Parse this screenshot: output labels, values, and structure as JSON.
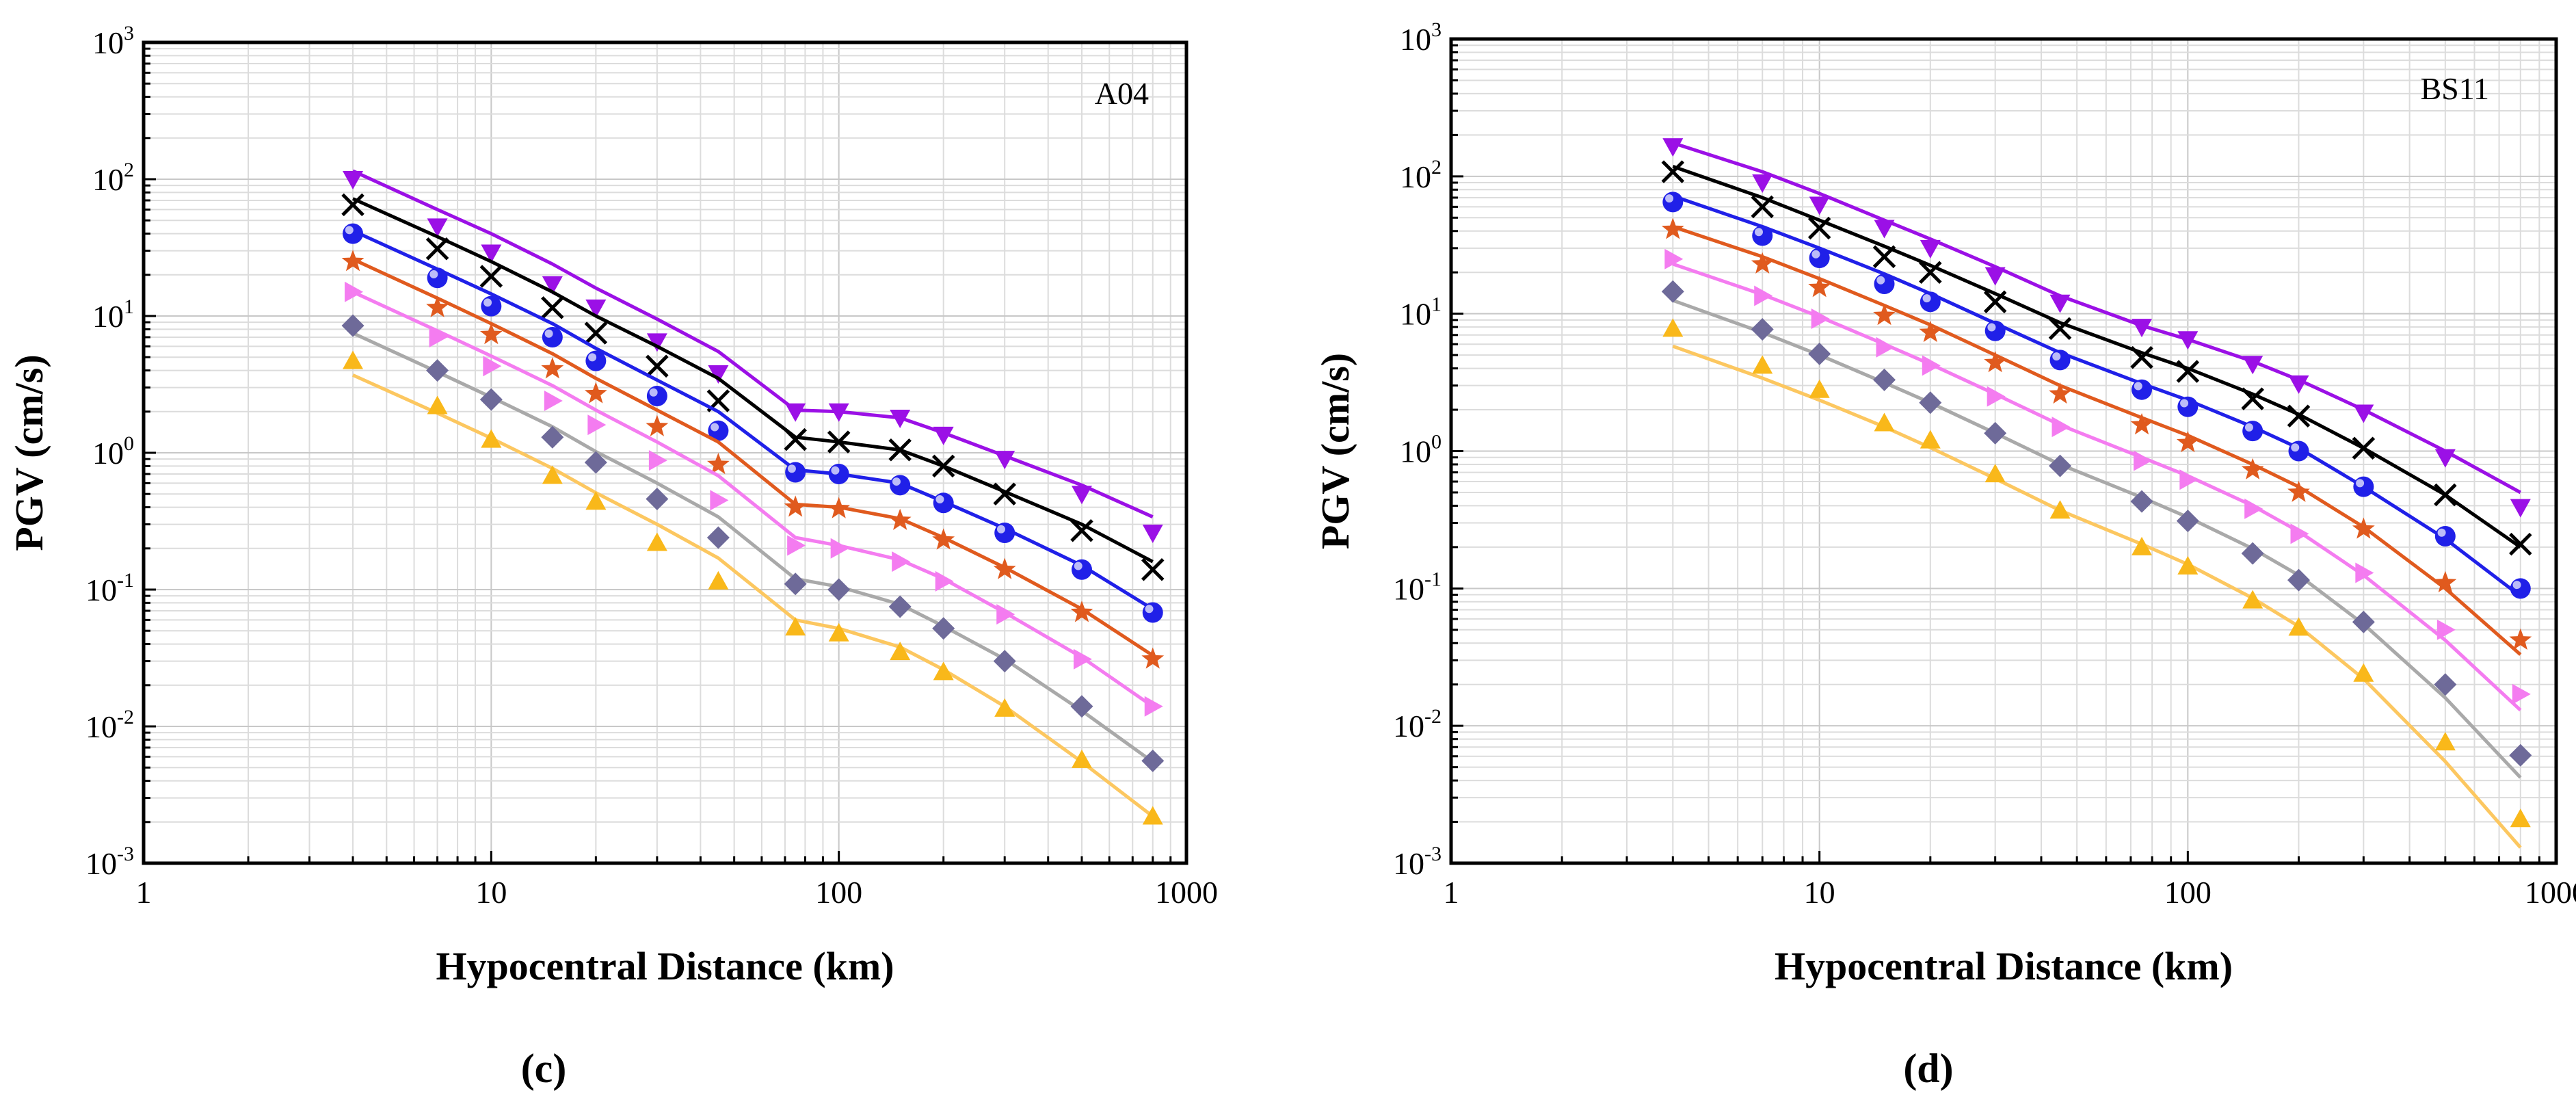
{
  "chart_data": [
    {
      "type": "line",
      "panel_label": "A04",
      "caption": "(c)",
      "xlabel": "Hypocentral Distance (km)",
      "ylabel": "PGV (cm/s)",
      "xscale": "log",
      "yscale": "log",
      "xlim": [
        1,
        1000
      ],
      "ylim": [
        0.001,
        1000
      ],
      "x_ticks": [
        1,
        10,
        100,
        1000
      ],
      "x_tick_labels": [
        "1",
        "10",
        "100",
        "1000"
      ],
      "y_ticks": [
        0.001,
        0.01,
        0.1,
        1,
        10,
        100,
        1000
      ],
      "y_tick_labels": [
        {
          "base": "10",
          "exp": "-3"
        },
        {
          "base": "10",
          "exp": "-2"
        },
        {
          "base": "10",
          "exp": "-1"
        },
        {
          "base": "10",
          "exp": "0"
        },
        {
          "base": "10",
          "exp": "1"
        },
        {
          "base": "10",
          "exp": "2"
        },
        {
          "base": "10",
          "exp": "3"
        }
      ],
      "grid": true,
      "x": [
        4,
        7,
        10,
        15,
        20,
        30,
        45,
        75,
        100,
        150,
        200,
        300,
        500,
        800
      ],
      "series": [
        {
          "color": "#9b10e6",
          "marker": "triangle-down",
          "values": [
            100,
            45,
            29,
            17,
            11.5,
            6.5,
            3.8,
            2.0,
            2.0,
            1.8,
            1.35,
            0.9,
            0.5,
            0.26
          ],
          "fit": [
            115,
            60,
            40,
            24,
            16,
            9.5,
            5.5,
            2.05,
            2.0,
            1.8,
            1.4,
            0.95,
            0.58,
            0.34
          ]
        },
        {
          "color": "#000000",
          "marker": "x",
          "values": [
            65,
            31,
            19.5,
            11.5,
            7.5,
            4.3,
            2.4,
            1.25,
            1.2,
            1.05,
            0.8,
            0.5,
            0.27,
            0.14
          ],
          "fit": [
            72,
            38,
            25,
            15,
            10,
            6.0,
            3.5,
            1.3,
            1.2,
            1.05,
            0.8,
            0.52,
            0.3,
            0.16
          ]
        },
        {
          "color": "#2020e8",
          "marker": "sphere",
          "values": [
            40,
            19,
            11.8,
            7.0,
            4.7,
            2.6,
            1.45,
            0.72,
            0.7,
            0.58,
            0.43,
            0.26,
            0.14,
            0.068
          ],
          "fit": [
            42,
            22,
            14.5,
            8.8,
            5.8,
            3.4,
            2.0,
            0.75,
            0.7,
            0.6,
            0.44,
            0.28,
            0.15,
            0.072
          ]
        },
        {
          "color": "#e05a1e",
          "marker": "star",
          "values": [
            25,
            11.5,
            7.3,
            4.1,
            2.7,
            1.55,
            0.82,
            0.4,
            0.39,
            0.32,
            0.23,
            0.14,
            0.068,
            0.031
          ],
          "fit": [
            26,
            13.5,
            8.8,
            5.3,
            3.5,
            2.05,
            1.2,
            0.42,
            0.4,
            0.33,
            0.24,
            0.145,
            0.072,
            0.033
          ]
        },
        {
          "color": "#f47cf0",
          "marker": "triangle-right",
          "values": [
            15,
            7.0,
            4.3,
            2.4,
            1.6,
            0.88,
            0.45,
            0.21,
            0.2,
            0.16,
            0.115,
            0.066,
            0.031,
            0.014
          ],
          "fit": [
            15,
            7.8,
            5.1,
            3.1,
            2.05,
            1.2,
            0.68,
            0.24,
            0.21,
            0.165,
            0.12,
            0.068,
            0.032,
            0.014
          ]
        },
        {
          "color": "#6e6a99",
          "line_color": "#a9a9a9",
          "marker": "diamond",
          "values": [
            8.5,
            4.0,
            2.45,
            1.3,
            0.85,
            0.46,
            0.24,
            0.11,
            0.1,
            0.075,
            0.052,
            0.03,
            0.014,
            0.0056
          ],
          "fit": [
            7.5,
            3.9,
            2.55,
            1.55,
            1.02,
            0.6,
            0.34,
            0.12,
            0.105,
            0.078,
            0.054,
            0.031,
            0.013,
            0.0055
          ]
        },
        {
          "color": "#f9b81a",
          "line_color": "#fcc760",
          "marker": "triangle-up",
          "values": [
            4.7,
            2.2,
            1.25,
            0.68,
            0.44,
            0.22,
            0.115,
            0.053,
            0.048,
            0.035,
            0.025,
            0.0135,
            0.0057,
            0.0022
          ],
          "fit": [
            3.7,
            1.95,
            1.28,
            0.77,
            0.51,
            0.3,
            0.17,
            0.06,
            0.052,
            0.038,
            0.026,
            0.014,
            0.0055,
            0.0022
          ]
        }
      ]
    },
    {
      "type": "line",
      "panel_label": "BS11",
      "caption": "(d)",
      "xlabel": "Hypocentral Distance (km)",
      "ylabel": "PGV (cm/s)",
      "xscale": "log",
      "yscale": "log",
      "xlim": [
        1,
        1000
      ],
      "ylim": [
        0.001,
        1000
      ],
      "x_ticks": [
        1,
        10,
        100,
        1000
      ],
      "x_tick_labels": [
        "1",
        "10",
        "100",
        "1000"
      ],
      "y_ticks": [
        0.001,
        0.01,
        0.1,
        1,
        10,
        100,
        1000
      ],
      "y_tick_labels": [
        {
          "base": "10",
          "exp": "-3"
        },
        {
          "base": "10",
          "exp": "-2"
        },
        {
          "base": "10",
          "exp": "-1"
        },
        {
          "base": "10",
          "exp": "0"
        },
        {
          "base": "10",
          "exp": "1"
        },
        {
          "base": "10",
          "exp": "2"
        },
        {
          "base": "10",
          "exp": "3"
        }
      ],
      "grid": true,
      "x": [
        4,
        7,
        10,
        15,
        20,
        30,
        45,
        75,
        100,
        150,
        200,
        300,
        500,
        800
      ],
      "series": [
        {
          "color": "#9b10e6",
          "marker": "triangle-down",
          "values": [
            165,
            90,
            62,
            42,
            30,
            19,
            12,
            8.0,
            6.5,
            4.3,
            3.1,
            1.9,
            0.9,
            0.39
          ],
          "fit": [
            175,
            108,
            75,
            48,
            35,
            22,
            13.5,
            8.2,
            6.5,
            4.5,
            3.3,
            2.0,
            1.0,
            0.5
          ]
        },
        {
          "color": "#000000",
          "marker": "x",
          "values": [
            108,
            60,
            42,
            26,
            20,
            12.2,
            7.8,
            4.8,
            3.8,
            2.4,
            1.8,
            1.05,
            0.48,
            0.21
          ],
          "fit": [
            118,
            70,
            48,
            31,
            22.5,
            14,
            8.6,
            5.2,
            4.0,
            2.6,
            1.85,
            1.05,
            0.48,
            0.2
          ]
        },
        {
          "color": "#2020e8",
          "marker": "sphere",
          "values": [
            65,
            37,
            25.5,
            16.5,
            12.2,
            7.5,
            4.6,
            2.8,
            2.1,
            1.4,
            1.0,
            0.55,
            0.24,
            0.1
          ],
          "fit": [
            72,
            43,
            30,
            19.5,
            14,
            8.5,
            5.2,
            3.1,
            2.35,
            1.5,
            1.05,
            0.55,
            0.23,
            0.088
          ]
        },
        {
          "color": "#e05a1e",
          "marker": "star",
          "values": [
            41,
            23,
            15.5,
            9.7,
            7.3,
            4.4,
            2.6,
            1.55,
            1.15,
            0.73,
            0.5,
            0.27,
            0.11,
            0.042
          ],
          "fit": [
            43,
            26,
            18,
            11.5,
            8.3,
            5.0,
            3.0,
            1.75,
            1.3,
            0.8,
            0.55,
            0.28,
            0.1,
            0.033
          ]
        },
        {
          "color": "#f47cf0",
          "marker": "triangle-right",
          "values": [
            25,
            13.5,
            9.2,
            5.7,
            4.2,
            2.5,
            1.5,
            0.85,
            0.62,
            0.38,
            0.25,
            0.13,
            0.05,
            0.017
          ],
          "fit": [
            23,
            13.8,
            9.5,
            6.0,
            4.3,
            2.6,
            1.55,
            0.9,
            0.66,
            0.4,
            0.26,
            0.125,
            0.042,
            0.013
          ]
        },
        {
          "color": "#6e6a99",
          "line_color": "#a9a9a9",
          "marker": "diamond",
          "values": [
            14.5,
            7.7,
            5.1,
            3.3,
            2.25,
            1.35,
            0.78,
            0.43,
            0.31,
            0.18,
            0.115,
            0.057,
            0.02,
            0.0061
          ],
          "fit": [
            12.5,
            7.3,
            5.0,
            3.15,
            2.25,
            1.35,
            0.8,
            0.46,
            0.33,
            0.195,
            0.125,
            0.055,
            0.016,
            0.0042
          ]
        },
        {
          "color": "#f9b81a",
          "line_color": "#fcc760",
          "marker": "triangle-up",
          "values": [
            7.8,
            4.2,
            2.8,
            1.6,
            1.2,
            0.68,
            0.37,
            0.2,
            0.145,
            0.082,
            0.052,
            0.024,
            0.0076,
            0.0021
          ],
          "fit": [
            5.8,
            3.4,
            2.35,
            1.5,
            1.06,
            0.63,
            0.37,
            0.21,
            0.15,
            0.085,
            0.053,
            0.022,
            0.0055,
            0.0013
          ]
        }
      ]
    }
  ]
}
